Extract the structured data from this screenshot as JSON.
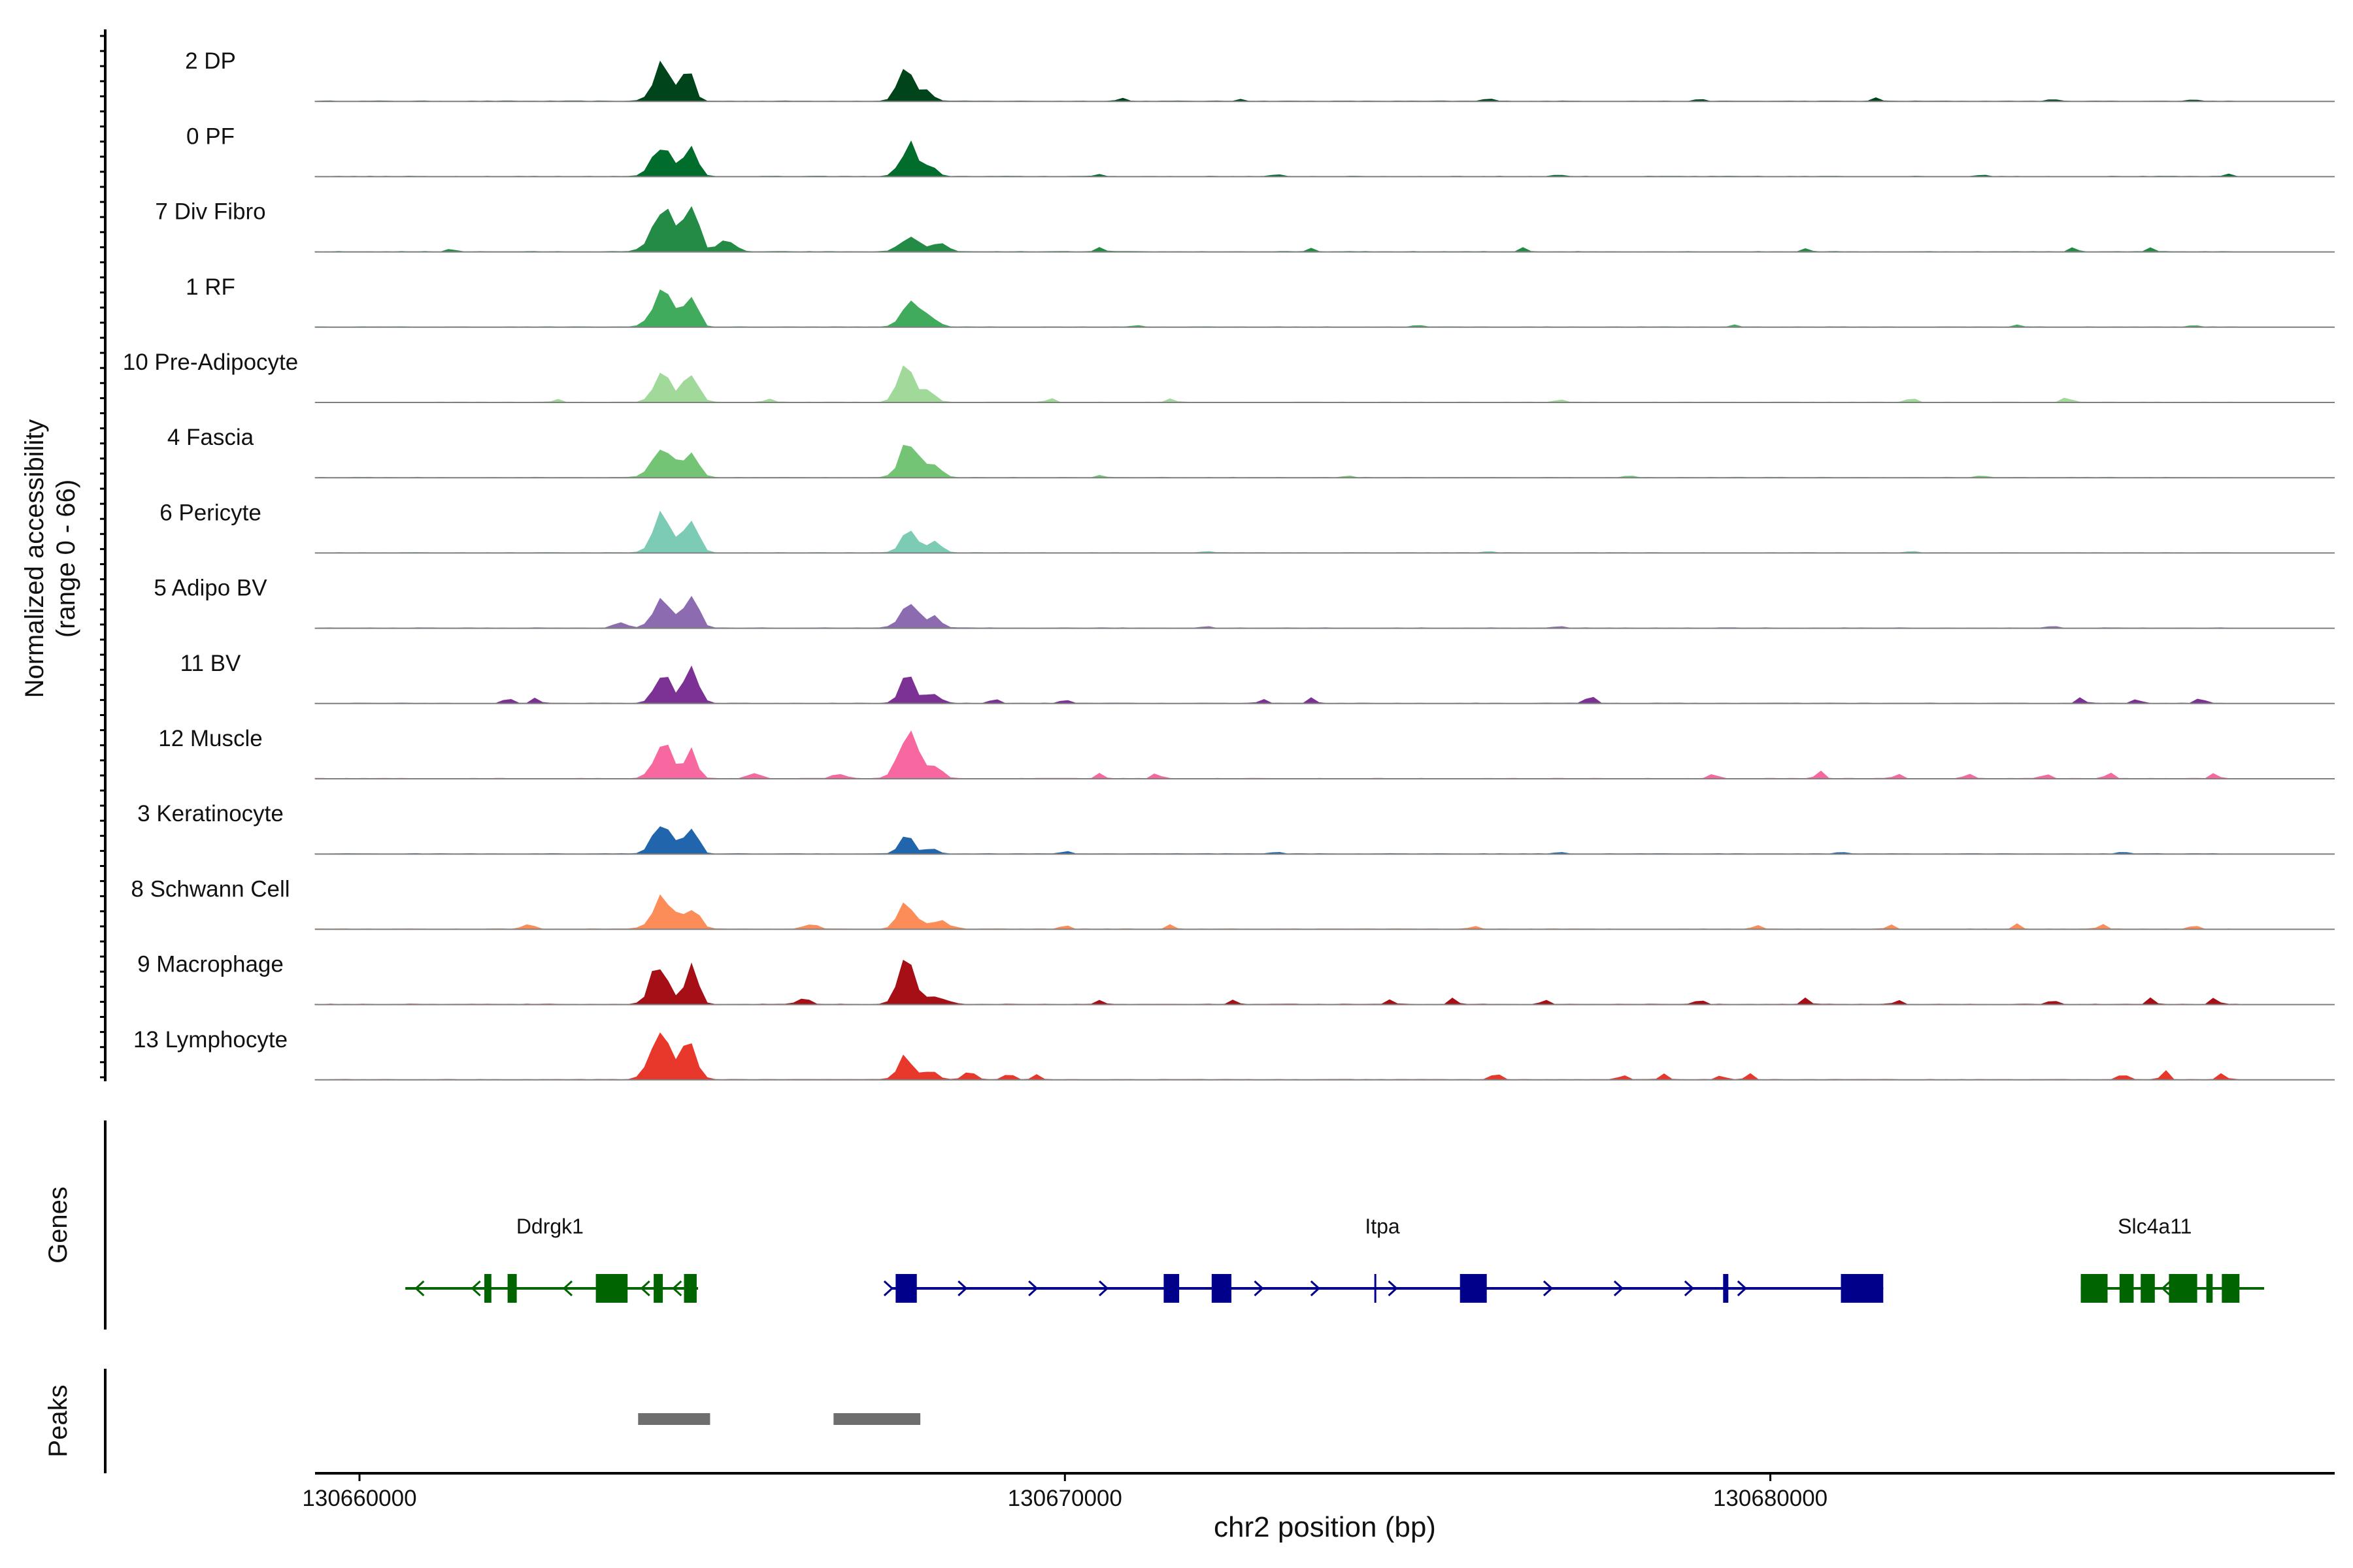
{
  "chart_data": {
    "type": "area",
    "title": "",
    "xlabel": "chr2 position (bp)",
    "ylabel_line1": "Normalized accessibility",
    "ylabel_line2": "(range 0 - 66)",
    "ylim": [
      0,
      66
    ],
    "xlim": [
      130659370,
      130688000
    ],
    "xticks": [
      130660000,
      130670000,
      130680000
    ],
    "xtick_labels": [
      "130660000",
      "130670000",
      "130680000"
    ],
    "genes_label": "Genes",
    "peaks_label": "Peaks",
    "series": [
      {
        "name": "2 DP",
        "color": "#00441b",
        "peaks": [
          [
            130664300,
            130,
            34
          ],
          [
            130664660,
            80,
            30
          ],
          [
            130667750,
            110,
            32
          ],
          [
            130668050,
            90,
            9
          ]
        ],
        "minor": [
          [
            130670800,
            3
          ],
          [
            130672500,
            2
          ],
          [
            130676000,
            3
          ],
          [
            130679000,
            2
          ],
          [
            130681500,
            3
          ],
          [
            130684000,
            2
          ],
          [
            130686000,
            2
          ],
          [
            130687000,
            2
          ]
        ]
      },
      {
        "name": "0 PF",
        "color": "#006d2c",
        "peaks": [
          [
            130664300,
            140,
            32
          ],
          [
            130664700,
            90,
            26
          ],
          [
            130667800,
            120,
            30
          ],
          [
            130668100,
            90,
            8
          ]
        ],
        "minor": [
          [
            130670500,
            2
          ],
          [
            130673000,
            2
          ],
          [
            130677000,
            2
          ],
          [
            130683000,
            2
          ],
          [
            130686500,
            2
          ]
        ]
      },
      {
        "name": "7 Div Fibro",
        "color": "#238b45",
        "peaks": [
          [
            130664300,
            150,
            40
          ],
          [
            130664700,
            100,
            50
          ],
          [
            130665200,
            120,
            10
          ],
          [
            130667800,
            130,
            14
          ],
          [
            130668200,
            120,
            8
          ]
        ],
        "minor": [
          [
            130661300,
            3
          ],
          [
            130670500,
            4
          ],
          [
            130673500,
            3
          ],
          [
            130676500,
            4
          ],
          [
            130680500,
            3
          ],
          [
            130684300,
            4
          ],
          [
            130685400,
            4
          ]
        ]
      },
      {
        "name": "1 RF",
        "color": "#41ab5d",
        "peaks": [
          [
            130664300,
            140,
            36
          ],
          [
            130664700,
            90,
            30
          ],
          [
            130667800,
            120,
            24
          ],
          [
            130668100,
            100,
            10
          ]
        ],
        "minor": [
          [
            130671000,
            2
          ],
          [
            130675000,
            2
          ],
          [
            130679500,
            2
          ],
          [
            130683500,
            2
          ],
          [
            130686000,
            2
          ]
        ]
      },
      {
        "name": "10 Pre-Adipocyte",
        "color": "#a1d99b",
        "peaks": [
          [
            130664300,
            120,
            30
          ],
          [
            130664700,
            100,
            28
          ],
          [
            130667750,
            110,
            36
          ],
          [
            130668050,
            90,
            14
          ]
        ],
        "minor": [
          [
            130662800,
            3
          ],
          [
            130665800,
            3
          ],
          [
            130669800,
            5
          ],
          [
            130671500,
            3
          ],
          [
            130677000,
            3
          ],
          [
            130682000,
            5
          ],
          [
            130684200,
            6
          ]
        ]
      },
      {
        "name": "4 Fascia",
        "color": "#74c476",
        "peaks": [
          [
            130664300,
            140,
            30
          ],
          [
            130664700,
            100,
            24
          ],
          [
            130667800,
            130,
            34
          ],
          [
            130668150,
            100,
            10
          ]
        ],
        "minor": [
          [
            130670500,
            2
          ],
          [
            130674000,
            2
          ],
          [
            130678000,
            2
          ],
          [
            130683000,
            2
          ]
        ]
      },
      {
        "name": "6 Pericyte",
        "color": "#7ccbb5",
        "peaks": [
          [
            130664300,
            130,
            36
          ],
          [
            130664700,
            100,
            28
          ],
          [
            130667800,
            110,
            24
          ],
          [
            130668150,
            90,
            12
          ]
        ],
        "minor": [
          [
            130672000,
            2
          ],
          [
            130676000,
            2
          ],
          [
            130682000,
            2
          ]
        ]
      },
      {
        "name": "5 Adipo BV",
        "color": "#8c6bb1",
        "peaks": [
          [
            130664300,
            130,
            28
          ],
          [
            130664700,
            100,
            30
          ],
          [
            130663700,
            80,
            6
          ],
          [
            130667800,
            130,
            22
          ],
          [
            130668150,
            90,
            10
          ]
        ],
        "minor": [
          [
            130672000,
            2
          ],
          [
            130677000,
            2
          ],
          [
            130684000,
            2
          ]
        ]
      },
      {
        "name": "11 BV",
        "color": "#7b3294",
        "peaks": [
          [
            130664300,
            110,
            30
          ],
          [
            130664700,
            100,
            34
          ],
          [
            130667750,
            90,
            30
          ],
          [
            130668100,
            110,
            10
          ]
        ],
        "minor": [
          [
            130662100,
            6
          ],
          [
            130662500,
            5
          ],
          [
            130669000,
            5
          ],
          [
            130670000,
            4
          ],
          [
            130672800,
            4
          ],
          [
            130673500,
            6
          ],
          [
            130677450,
            10
          ],
          [
            130684400,
            6
          ],
          [
            130685200,
            4
          ],
          [
            130686100,
            6
          ],
          [
            130687000,
            4
          ]
        ]
      },
      {
        "name": "12 Muscle",
        "color": "#f768a1",
        "peaks": [
          [
            130664300,
            120,
            38
          ],
          [
            130664700,
            80,
            28
          ],
          [
            130667800,
            150,
            40
          ],
          [
            130668200,
            80,
            10
          ],
          [
            130665600,
            80,
            6
          ],
          [
            130666800,
            80,
            5
          ]
        ],
        "minor": [
          [
            130670500,
            5
          ],
          [
            130671300,
            6
          ],
          [
            130679200,
            5
          ],
          [
            130680700,
            8
          ],
          [
            130681800,
            5
          ],
          [
            130682800,
            5
          ],
          [
            130683900,
            5
          ],
          [
            130684800,
            6
          ],
          [
            130686300,
            5
          ]
        ]
      },
      {
        "name": "3 Keratinocyte",
        "color": "#2166ac",
        "peaks": [
          [
            130664300,
            130,
            30
          ],
          [
            130664700,
            90,
            26
          ],
          [
            130667750,
            90,
            20
          ],
          [
            130668100,
            80,
            6
          ]
        ],
        "minor": [
          [
            130670000,
            3
          ],
          [
            130673000,
            2
          ],
          [
            130677000,
            2
          ],
          [
            130681000,
            2
          ],
          [
            130685000,
            2
          ]
        ]
      },
      {
        "name": "8 Schwann Cell",
        "color": "#fc8d59",
        "peaks": [
          [
            130664300,
            140,
            30
          ],
          [
            130664700,
            110,
            20
          ],
          [
            130667750,
            110,
            26
          ],
          [
            130668200,
            150,
            8
          ],
          [
            130662400,
            80,
            4
          ],
          [
            130666400,
            90,
            5
          ]
        ],
        "minor": [
          [
            130670000,
            4
          ],
          [
            130671500,
            4
          ],
          [
            130675800,
            3
          ],
          [
            130679800,
            4
          ],
          [
            130681700,
            4
          ],
          [
            130683500,
            5
          ],
          [
            130684700,
            5
          ],
          [
            130686000,
            4
          ]
        ]
      },
      {
        "name": "9 Macrophage",
        "color": "#a50f15",
        "peaks": [
          [
            130664250,
            120,
            40
          ],
          [
            130664700,
            90,
            36
          ],
          [
            130667750,
            110,
            40
          ],
          [
            130668150,
            150,
            8
          ],
          [
            130666300,
            80,
            6
          ]
        ],
        "minor": [
          [
            130670500,
            4
          ],
          [
            130672400,
            4
          ],
          [
            130674600,
            4
          ],
          [
            130675500,
            6
          ],
          [
            130676800,
            4
          ],
          [
            130679000,
            5
          ],
          [
            130680500,
            6
          ],
          [
            130681800,
            4
          ],
          [
            130684000,
            5
          ],
          [
            130685400,
            6
          ],
          [
            130686300,
            6
          ],
          [
            130687000,
            8
          ]
        ]
      },
      {
        "name": "13 Lymphocyte",
        "color": "#e8372b",
        "peaks": [
          [
            130664250,
            130,
            48
          ],
          [
            130664650,
            110,
            40
          ],
          [
            130667750,
            110,
            22
          ],
          [
            130668100,
            90,
            8
          ],
          [
            130668650,
            80,
            8
          ],
          [
            130669200,
            70,
            6
          ]
        ],
        "minor": [
          [
            130669600,
            5
          ],
          [
            130676100,
            8
          ],
          [
            130677900,
            5
          ],
          [
            130678500,
            5
          ],
          [
            130679300,
            5
          ],
          [
            130679700,
            6
          ],
          [
            130685000,
            8
          ],
          [
            130685600,
            8
          ],
          [
            130686400,
            6
          ]
        ]
      }
    ],
    "genes": [
      {
        "name": "Ddrgk1",
        "color": "#006400",
        "start": 130660650,
        "end": 130664800,
        "strand": "-",
        "label_x": 130662700,
        "exons": [
          [
            130661770,
            130661870
          ],
          [
            130662100,
            130662230
          ],
          [
            130663350,
            130663800
          ],
          [
            130664170,
            130664300
          ],
          [
            130664600,
            130664780
          ]
        ],
        "arrows": [
          130660800,
          130661600,
          130662900,
          130664000,
          130664450
        ]
      },
      {
        "name": "Itpa",
        "color": "#00008b",
        "start": 130667550,
        "end": 130681600,
        "strand": "+",
        "label_x": 130674500,
        "exons": [
          [
            130667600,
            130667900
          ],
          [
            130671400,
            130671620
          ],
          [
            130672080,
            130672360
          ],
          [
            130675600,
            130675980
          ],
          [
            130679330,
            130679400
          ],
          [
            130681000,
            130681600
          ]
        ],
        "thin": [
          130674400
        ],
        "arrows": [
          130667550,
          130668600,
          130669600,
          130670600,
          130672800,
          130673600,
          130674700,
          130676900,
          130677900,
          130678900,
          130679650
        ]
      },
      {
        "name": "Slc4a11",
        "color": "#006400",
        "start": 130684400,
        "end": 130687000,
        "strand": "-",
        "label_x": 130685450,
        "exons": [
          [
            130684400,
            130684780
          ],
          [
            130684950,
            130685150
          ],
          [
            130685250,
            130685450
          ],
          [
            130685650,
            130686050
          ],
          [
            130686180,
            130686270
          ],
          [
            130686400,
            130686650
          ]
        ],
        "arrows": [
          130685560
        ]
      }
    ],
    "peak_regions": [
      [
        130663950,
        130664970
      ],
      [
        130666720,
        130667950
      ]
    ]
  }
}
